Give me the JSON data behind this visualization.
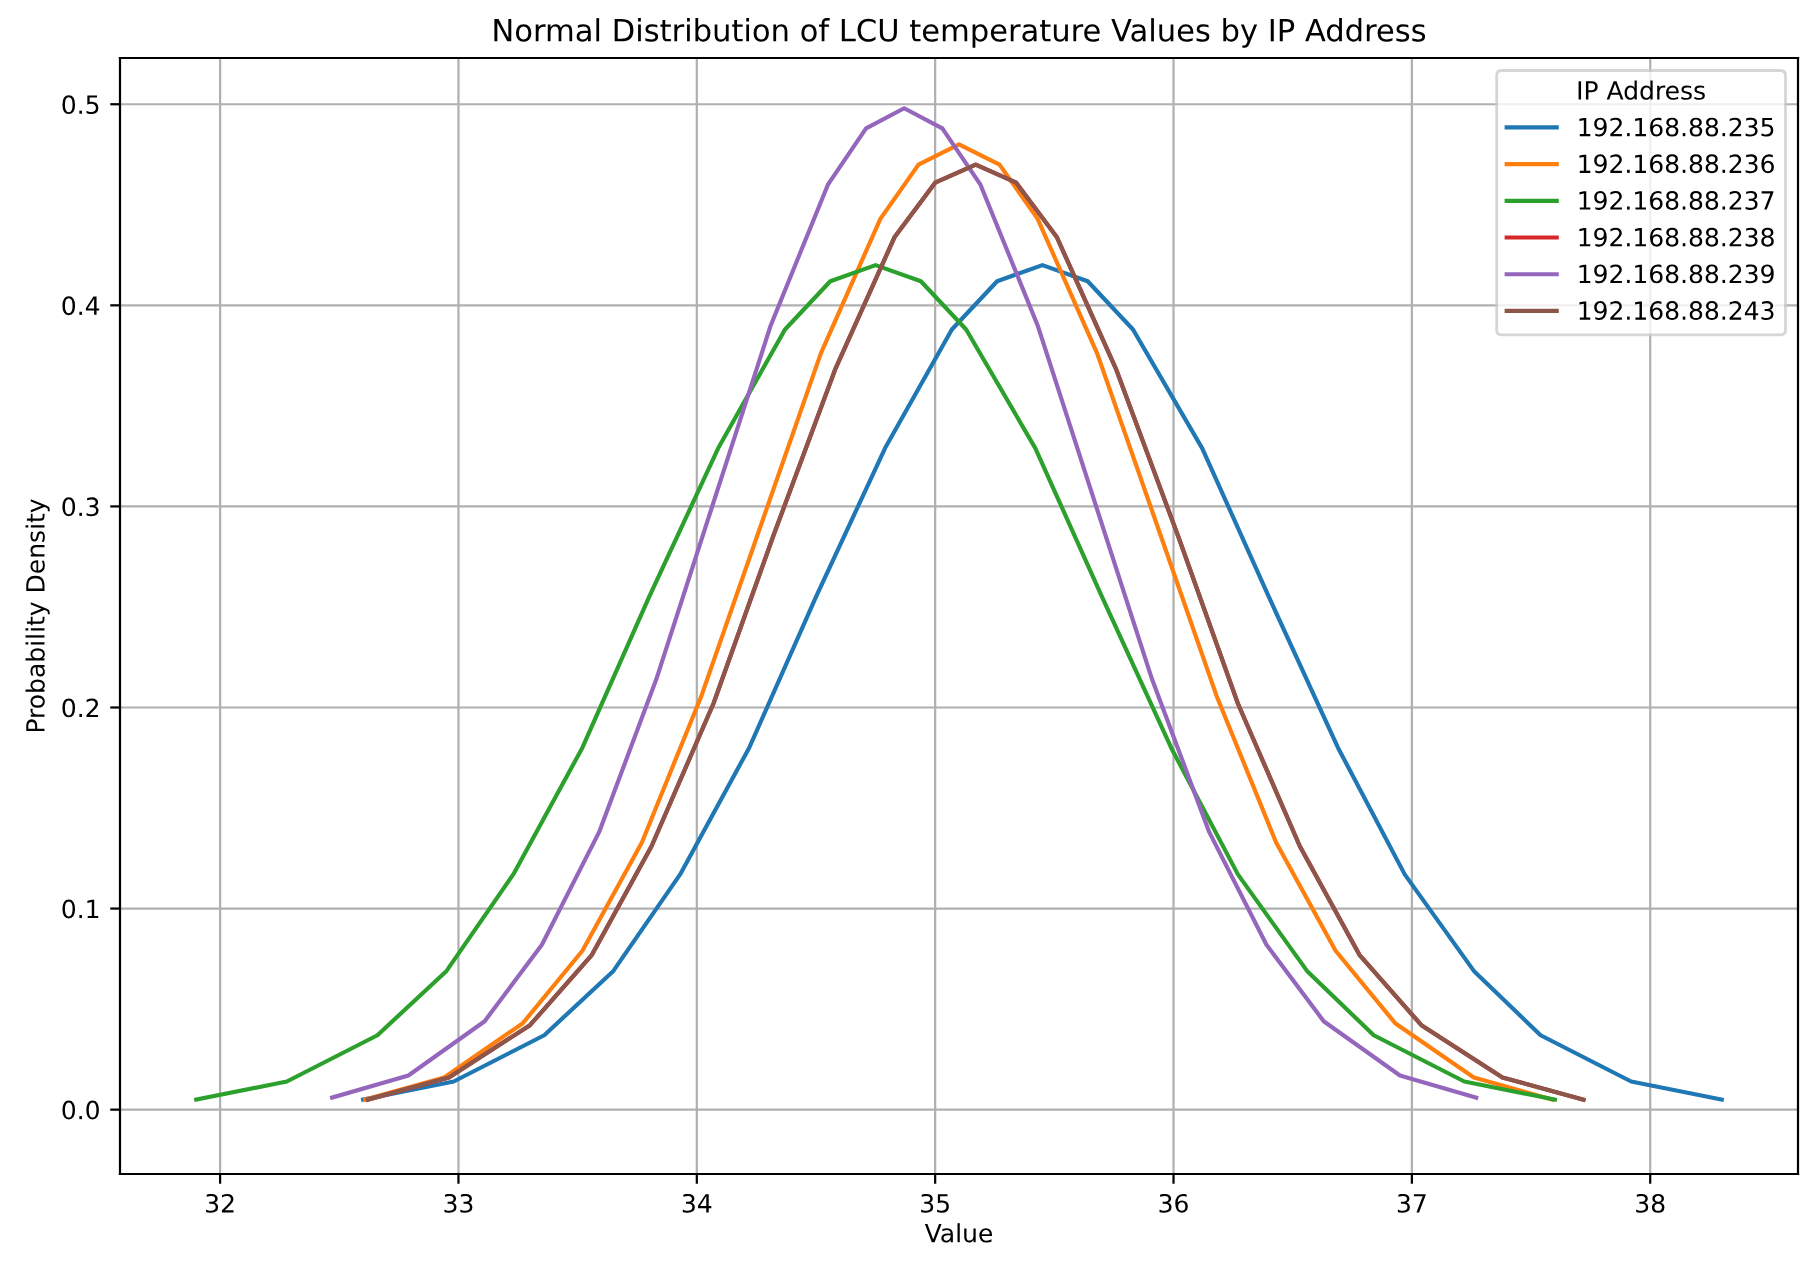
{
  "chart_data": {
    "type": "line",
    "title": "Normal Distribution of LCU temperature Values by IP Address",
    "xlabel": "Value",
    "ylabel": "Probability Density",
    "legend_title": "IP Address",
    "legend": "top right",
    "grid": true,
    "xlim": [
      31.58,
      38.62
    ],
    "xticks": [
      32,
      33,
      34,
      35,
      36,
      37,
      38
    ],
    "ylim": [
      -0.032,
      0.523
    ],
    "yticks": [
      {
        "value": 0,
        "label": "0.0"
      },
      0.1,
      0.2,
      0.3,
      0.4,
      0.5
    ],
    "series": [
      {
        "name": "192.168.88.235",
        "color": "#1f77b4",
        "x": [
          32.6,
          32.98,
          33.36,
          33.65,
          33.93,
          34.22,
          34.5,
          34.79,
          35.07,
          35.26,
          35.45,
          35.64,
          35.83,
          36.12,
          36.4,
          36.69,
          36.97,
          37.26,
          37.54,
          37.92,
          38.3
        ],
        "values": [
          0.005,
          0.014,
          0.037,
          0.069,
          0.117,
          0.18,
          0.255,
          0.329,
          0.388,
          0.412,
          0.42,
          0.412,
          0.388,
          0.329,
          0.255,
          0.18,
          0.117,
          0.069,
          0.037,
          0.014,
          0.005
        ]
      },
      {
        "name": "192.168.88.236",
        "color": "#ff7f0e",
        "x": [
          32.61,
          32.94,
          33.27,
          33.52,
          33.77,
          34.02,
          34.27,
          34.52,
          34.77,
          34.93,
          35.1,
          35.27,
          35.43,
          35.68,
          35.93,
          36.18,
          36.43,
          36.68,
          36.93,
          37.26,
          37.59
        ],
        "values": [
          0.005,
          0.016,
          0.043,
          0.079,
          0.133,
          0.206,
          0.291,
          0.376,
          0.443,
          0.47,
          0.48,
          0.47,
          0.443,
          0.376,
          0.291,
          0.206,
          0.133,
          0.079,
          0.043,
          0.016,
          0.005
        ]
      },
      {
        "name": "192.168.88.237",
        "color": "#2ca02c",
        "x": [
          31.9,
          32.28,
          32.66,
          32.95,
          33.23,
          33.52,
          33.8,
          34.09,
          34.37,
          34.56,
          34.75,
          34.94,
          35.13,
          35.42,
          35.7,
          35.99,
          36.27,
          36.56,
          36.84,
          37.22,
          37.6
        ],
        "values": [
          0.005,
          0.014,
          0.037,
          0.069,
          0.117,
          0.18,
          0.255,
          0.329,
          0.388,
          0.412,
          0.42,
          0.412,
          0.388,
          0.329,
          0.255,
          0.18,
          0.117,
          0.069,
          0.037,
          0.014,
          0.005
        ]
      },
      {
        "name": "192.168.88.238",
        "color": "#d62728",
        "x": [
          32.62,
          32.96,
          33.3,
          33.56,
          33.81,
          34.07,
          34.32,
          34.58,
          34.83,
          35.0,
          35.17,
          35.34,
          35.51,
          35.76,
          36.02,
          36.27,
          36.53,
          36.78,
          37.04,
          37.38,
          37.72
        ],
        "values": [
          0.005,
          0.016,
          0.042,
          0.077,
          0.131,
          0.202,
          0.285,
          0.368,
          0.434,
          0.461,
          0.47,
          0.461,
          0.434,
          0.368,
          0.285,
          0.202,
          0.131,
          0.077,
          0.042,
          0.016,
          0.005
        ]
      },
      {
        "name": "192.168.88.239",
        "color": "#9467bd",
        "x": [
          32.47,
          32.79,
          33.11,
          33.35,
          33.59,
          33.83,
          34.07,
          34.31,
          34.55,
          34.71,
          34.87,
          35.03,
          35.19,
          35.43,
          35.67,
          35.91,
          36.15,
          36.39,
          36.63,
          36.95,
          37.27
        ],
        "values": [
          0.006,
          0.017,
          0.044,
          0.082,
          0.138,
          0.214,
          0.302,
          0.39,
          0.46,
          0.488,
          0.498,
          0.488,
          0.46,
          0.39,
          0.302,
          0.214,
          0.138,
          0.082,
          0.044,
          0.017,
          0.006
        ]
      },
      {
        "name": "192.168.88.243",
        "color": "#8c564b",
        "x": [
          32.62,
          32.96,
          33.3,
          33.56,
          33.81,
          34.07,
          34.32,
          34.58,
          34.83,
          35.0,
          35.17,
          35.34,
          35.51,
          35.76,
          36.02,
          36.27,
          36.53,
          36.78,
          37.04,
          37.38,
          37.72
        ],
        "values": [
          0.005,
          0.016,
          0.042,
          0.077,
          0.131,
          0.202,
          0.285,
          0.368,
          0.434,
          0.461,
          0.47,
          0.461,
          0.434,
          0.368,
          0.285,
          0.202,
          0.131,
          0.077,
          0.042,
          0.016,
          0.005
        ]
      }
    ]
  }
}
